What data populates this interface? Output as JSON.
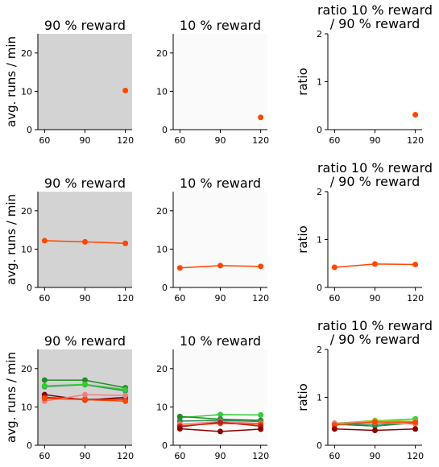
{
  "figure": {
    "col_titles": [
      "90 % reward",
      "10 % reward",
      "ratio 10 % reward\n/ 90 % reward"
    ],
    "ylabels": [
      "avg. runs / min",
      "avg. runs / min",
      "ratio"
    ]
  },
  "chart_data": [
    {
      "type": "scatter",
      "title": "90 % reward",
      "ylabel": "avg. runs / min",
      "background": "#d3d3d3",
      "x": [
        60,
        90,
        120
      ],
      "xlim": [
        55,
        125
      ],
      "ylim": [
        0,
        25
      ],
      "xticks": [
        60,
        90,
        120
      ],
      "yticks": [
        0,
        10,
        20
      ],
      "series": [
        {
          "color": "#ff4500",
          "points": [
            [
              120,
              10.2
            ]
          ]
        }
      ]
    },
    {
      "type": "scatter",
      "title": "10 % reward",
      "ylabel": "",
      "background": "#fafafa",
      "x": [
        60,
        90,
        120
      ],
      "xlim": [
        55,
        125
      ],
      "ylim": [
        0,
        25
      ],
      "xticks": [
        60,
        90,
        120
      ],
      "yticks": [
        0,
        10,
        20
      ],
      "series": [
        {
          "color": "#ff4500",
          "points": [
            [
              120,
              3.2
            ]
          ]
        }
      ]
    },
    {
      "type": "scatter",
      "title": "ratio 10 % reward\n/ 90 % reward",
      "ylabel": "ratio",
      "background": "#ffffff",
      "x": [
        60,
        90,
        120
      ],
      "xlim": [
        55,
        125
      ],
      "ylim": [
        0,
        2
      ],
      "xticks": [
        60,
        90,
        120
      ],
      "yticks": [
        0,
        1,
        2
      ],
      "series": [
        {
          "color": "#ff4500",
          "points": [
            [
              120,
              0.31
            ]
          ]
        }
      ]
    },
    {
      "type": "line",
      "title": "90 % reward",
      "ylabel": "avg. runs / min",
      "background": "#d3d3d3",
      "x": [
        60,
        90,
        120
      ],
      "xlim": [
        55,
        125
      ],
      "ylim": [
        0,
        25
      ],
      "xticks": [
        60,
        90,
        120
      ],
      "yticks": [
        0,
        10,
        20
      ],
      "series": [
        {
          "color": "#ff4500",
          "values": [
            12.2,
            11.9,
            11.5
          ]
        }
      ]
    },
    {
      "type": "line",
      "title": "10 % reward",
      "ylabel": "",
      "background": "#fafafa",
      "x": [
        60,
        90,
        120
      ],
      "xlim": [
        55,
        125
      ],
      "ylim": [
        0,
        25
      ],
      "xticks": [
        60,
        90,
        120
      ],
      "yticks": [
        0,
        10,
        20
      ],
      "series": [
        {
          "color": "#ff4500",
          "values": [
            5.1,
            5.7,
            5.5
          ]
        }
      ]
    },
    {
      "type": "line",
      "title": "ratio 10 % reward\n/ 90 % reward",
      "ylabel": "ratio",
      "background": "#ffffff",
      "x": [
        60,
        90,
        120
      ],
      "xlim": [
        55,
        125
      ],
      "ylim": [
        0,
        2
      ],
      "xticks": [
        60,
        90,
        120
      ],
      "yticks": [
        0,
        1,
        2
      ],
      "series": [
        {
          "color": "#ff4500",
          "values": [
            0.42,
            0.49,
            0.48
          ]
        }
      ]
    },
    {
      "type": "line",
      "title": "90 % reward",
      "ylabel": "avg. runs / min",
      "background": "#d3d3d3",
      "x": [
        60,
        90,
        120
      ],
      "xlim": [
        55,
        125
      ],
      "ylim": [
        0,
        25
      ],
      "xticks": [
        60,
        90,
        120
      ],
      "yticks": [
        0,
        10,
        20
      ],
      "series": [
        {
          "color": "#228b22",
          "values": [
            17.0,
            17.0,
            15.0
          ]
        },
        {
          "color": "#2e8b57",
          "values": [
            15.3,
            15.8,
            14.2
          ]
        },
        {
          "color": "#32cd32",
          "values": [
            15.5,
            15.9,
            14.5
          ]
        },
        {
          "color": "#8b0000",
          "values": [
            13.2,
            11.8,
            12.5
          ]
        },
        {
          "color": "#b22222",
          "values": [
            12.5,
            12.0,
            12.0
          ]
        },
        {
          "color": "#f08080",
          "values": [
            11.5,
            13.2,
            13.0
          ]
        },
        {
          "color": "#ff4500",
          "values": [
            12.2,
            11.9,
            11.5
          ]
        }
      ]
    },
    {
      "type": "line",
      "title": "10 % reward",
      "ylabel": "",
      "background": "#fafafa",
      "x": [
        60,
        90,
        120
      ],
      "xlim": [
        55,
        125
      ],
      "ylim": [
        0,
        25
      ],
      "xticks": [
        60,
        90,
        120
      ],
      "yticks": [
        0,
        10,
        20
      ],
      "series": [
        {
          "color": "#32cd32",
          "values": [
            7.2,
            8.0,
            7.9
          ]
        },
        {
          "color": "#228b22",
          "values": [
            7.5,
            6.8,
            6.5
          ]
        },
        {
          "color": "#2e8b57",
          "values": [
            6.3,
            6.5,
            6.2
          ]
        },
        {
          "color": "#f08080",
          "values": [
            5.5,
            6.2,
            5.7
          ]
        },
        {
          "color": "#ff4500",
          "values": [
            5.1,
            5.7,
            5.5
          ]
        },
        {
          "color": "#b22222",
          "values": [
            4.8,
            6.0,
            5.0
          ]
        },
        {
          "color": "#8b0000",
          "values": [
            4.3,
            3.6,
            4.2
          ]
        }
      ]
    },
    {
      "type": "line",
      "title": "ratio 10 % reward\n/ 90 % reward",
      "ylabel": "ratio",
      "background": "#ffffff",
      "x": [
        60,
        90,
        120
      ],
      "xlim": [
        55,
        125
      ],
      "ylim": [
        0,
        2
      ],
      "xticks": [
        60,
        90,
        120
      ],
      "yticks": [
        0,
        1,
        2
      ],
      "series": [
        {
          "color": "#32cd32",
          "values": [
            0.46,
            0.51,
            0.55
          ]
        },
        {
          "color": "#9acd32",
          "values": [
            0.45,
            0.52,
            0.5
          ]
        },
        {
          "color": "#228b22",
          "values": [
            0.44,
            0.4,
            0.47
          ]
        },
        {
          "color": "#2e8b57",
          "values": [
            0.43,
            0.44,
            0.45
          ]
        },
        {
          "color": "#f08080",
          "values": [
            0.46,
            0.48,
            0.44
          ]
        },
        {
          "color": "#ff4500",
          "values": [
            0.42,
            0.49,
            0.48
          ]
        },
        {
          "color": "#8b0000",
          "values": [
            0.34,
            0.31,
            0.34
          ]
        }
      ]
    }
  ]
}
